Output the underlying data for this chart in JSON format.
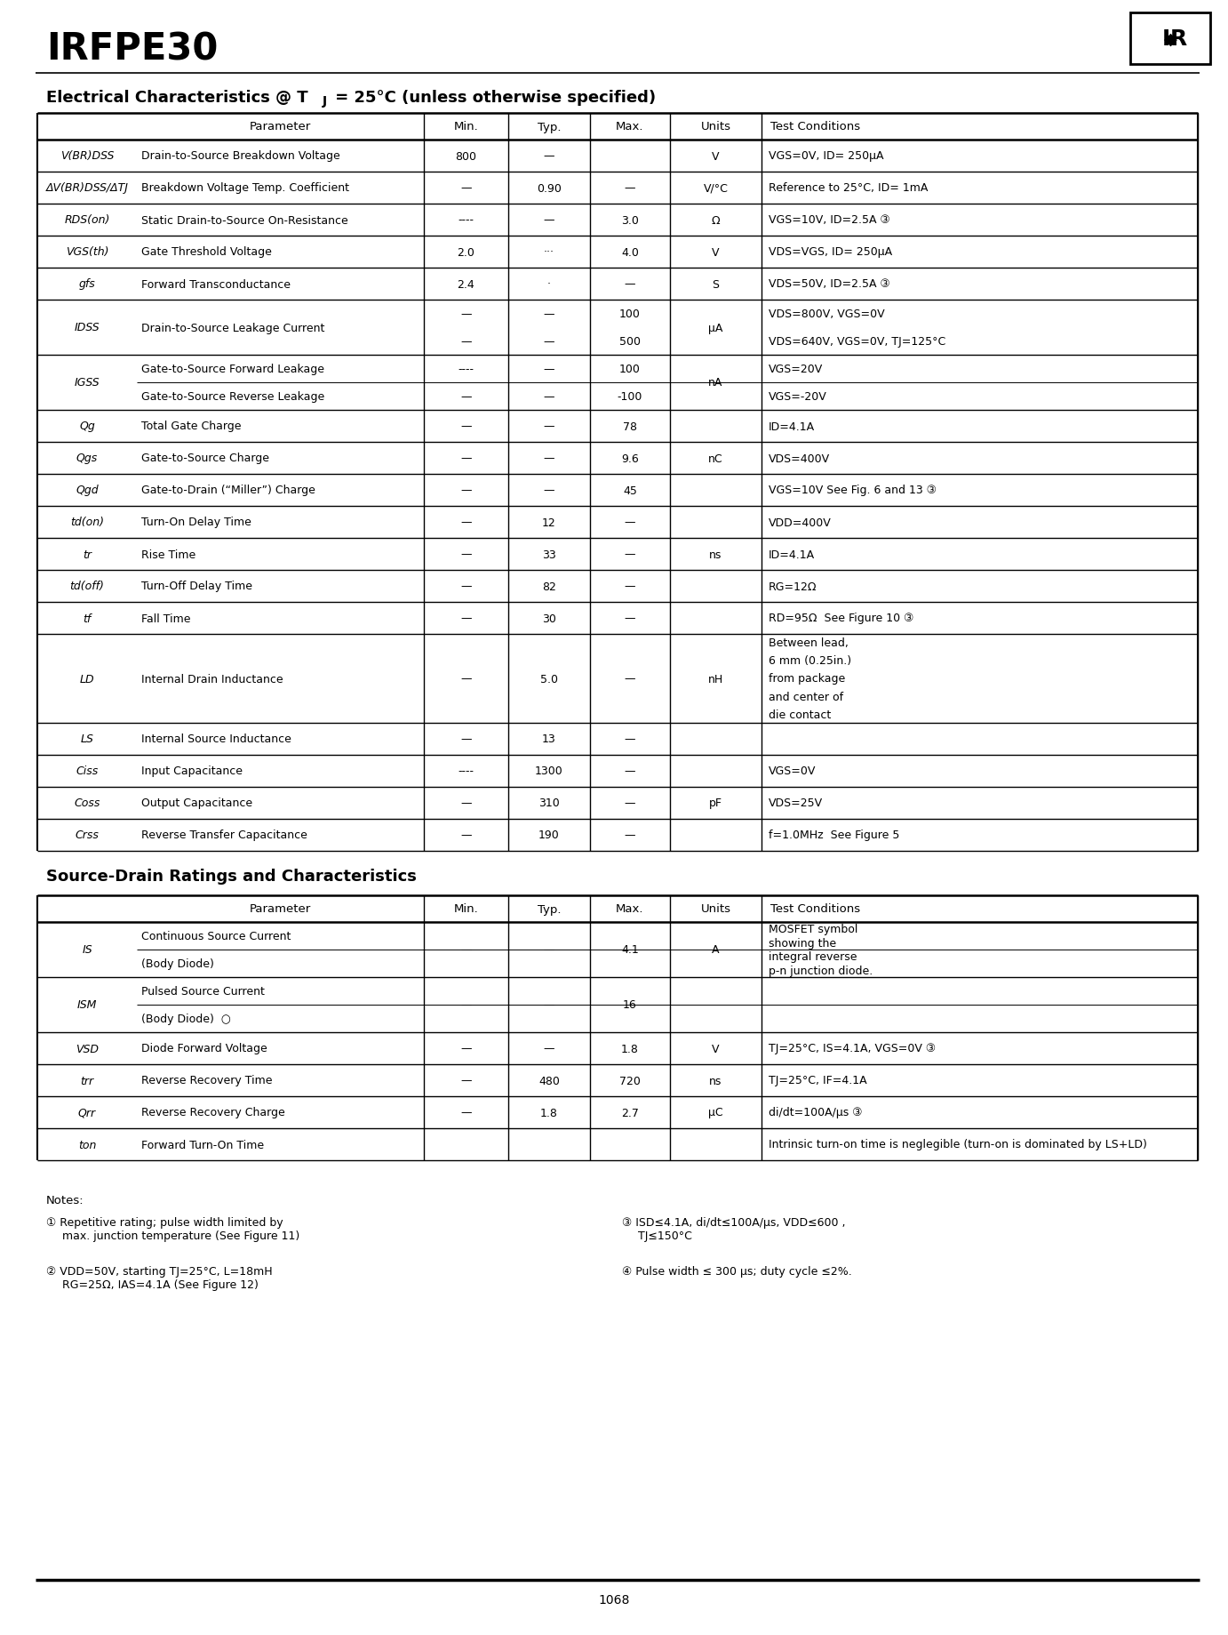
{
  "title": "IRFPE30",
  "page_number": "1068",
  "ec_heading": "Electrical Characteristics @ TJ = 25°C (unless otherwise specified)",
  "sd_heading": "Source-Drain Ratings and Characteristics",
  "ec_headers": [
    "",
    "Parameter",
    "Min.",
    "Typ.",
    "Max.",
    "Units",
    "Test Conditions"
  ],
  "ec_rows": [
    {
      "sym": "V(BR)DSS",
      "param": "Drain-to-Source Breakdown Voltage",
      "min": "800",
      "typ": "—",
      "max": "",
      "units": "V",
      "cond": "VGS=0V, ID= 250μA",
      "rh": 36
    },
    {
      "sym": "ΔV(BR)DSS/ΔTJ",
      "param": "Breakdown Voltage Temp. Coefficient",
      "min": "—",
      "typ": "0.90",
      "max": "—",
      "units": "V/°C",
      "cond": "Reference to 25°C, ID= 1mA",
      "rh": 36
    },
    {
      "sym": "RDS(on)",
      "param": "Static Drain-to-Source On-Resistance",
      "min": "----",
      "typ": "—",
      "max": "3.0",
      "units": "Ω",
      "cond": "VGS=10V, ID=2.5A ③",
      "rh": 36
    },
    {
      "sym": "VGS(th)",
      "param": "Gate Threshold Voltage",
      "min": "2.0",
      "typ": "···",
      "max": "4.0",
      "units": "V",
      "cond": "VDS=VGS, ID= 250μA",
      "rh": 36
    },
    {
      "sym": "gfs",
      "param": "Forward Transconductance",
      "min": "2.4",
      "typ": "·",
      "max": "—",
      "units": "S",
      "cond": "VDS=50V, ID=2.5A ③",
      "rh": 36
    },
    {
      "sym": "IDSS",
      "param": "Drain-to-Source Leakage Current",
      "min": "—\n—",
      "typ": "—\n—",
      "max": "100\n500",
      "units": "μA",
      "cond": "VDS=800V, VGS=0V\nVDS=640V, VGS=0V, TJ=125°C",
      "rh": 62
    },
    {
      "sym": "IGSS",
      "param": "Gate-to-Source Forward Leakage\nGate-to-Source Reverse Leakage",
      "min": "----\n—",
      "typ": "—\n—",
      "max": "100\n-100",
      "units": "nA",
      "cond": "VGS=20V\nVGS=-20V",
      "rh": 62
    },
    {
      "sym": "Qg",
      "param": "Total Gate Charge",
      "min": "—",
      "typ": "—",
      "max": "78",
      "units": "",
      "cond": "ID=4.1A",
      "rh": 36
    },
    {
      "sym": "Qgs",
      "param": "Gate-to-Source Charge",
      "min": "—",
      "typ": "—",
      "max": "9.6",
      "units": "nC",
      "cond": "VDS=400V",
      "rh": 36
    },
    {
      "sym": "Qgd",
      "param": "Gate-to-Drain (“Miller”) Charge",
      "min": "—",
      "typ": "—",
      "max": "45",
      "units": "",
      "cond": "VGS=10V See Fig. 6 and 13 ③",
      "rh": 36
    },
    {
      "sym": "td(on)",
      "param": "Turn-On Delay Time",
      "min": "—",
      "typ": "12",
      "max": "—",
      "units": "",
      "cond": "VDD=400V",
      "rh": 36
    },
    {
      "sym": "tr",
      "param": "Rise Time",
      "min": "—",
      "typ": "33",
      "max": "—",
      "units": "ns",
      "cond": "ID=4.1A",
      "rh": 36
    },
    {
      "sym": "td(off)",
      "param": "Turn-Off Delay Time",
      "min": "—",
      "typ": "82",
      "max": "—",
      "units": "",
      "cond": "RG=12Ω",
      "rh": 36
    },
    {
      "sym": "tf",
      "param": "Fall Time",
      "min": "—",
      "typ": "30",
      "max": "—",
      "units": "",
      "cond": "RD=95Ω  See Figure 10 ③",
      "rh": 36
    },
    {
      "sym": "LD",
      "param": "Internal Drain Inductance",
      "min": "—",
      "typ": "5.0",
      "max": "—",
      "units": "nH",
      "cond": "Between lead,\n6 mm (0.25in.)\nfrom package\nand center of\ndie contact",
      "rh": 100
    },
    {
      "sym": "LS",
      "param": "Internal Source Inductance",
      "min": "—",
      "typ": "13",
      "max": "—",
      "units": "",
      "cond": "",
      "rh": 36
    },
    {
      "sym": "Ciss",
      "param": "Input Capacitance",
      "min": "----",
      "typ": "1300",
      "max": "—",
      "units": "",
      "cond": "VGS=0V",
      "rh": 36
    },
    {
      "sym": "Coss",
      "param": "Output Capacitance",
      "min": "—",
      "typ": "310",
      "max": "—",
      "units": "pF",
      "cond": "VDS=25V",
      "rh": 36
    },
    {
      "sym": "Crss",
      "param": "Reverse Transfer Capacitance",
      "min": "—",
      "typ": "190",
      "max": "—",
      "units": "",
      "cond": "f=1.0MHz  See Figure 5",
      "rh": 36
    }
  ],
  "sd_headers": [
    "",
    "Parameter",
    "Min.",
    "Typ.",
    "Max.",
    "Units",
    "Test Conditions"
  ],
  "sd_rows": [
    {
      "sym": "IS",
      "param": "Continuous Source Current\n(Body Diode)",
      "min": "—",
      "typ": "—",
      "max": "4.1",
      "units": "A",
      "cond": "MOSFET symbol\nshowing the\nintegral reverse\np-n junction diode.",
      "rh": 62
    },
    {
      "sym": "ISM",
      "param": "Pulsed Source Current\n(Body Diode)  ○",
      "min": "—",
      "typ": "—",
      "max": "16",
      "units": "",
      "cond": "",
      "rh": 62
    },
    {
      "sym": "VSD",
      "param": "Diode Forward Voltage",
      "min": "—",
      "typ": "—",
      "max": "1.8",
      "units": "V",
      "cond": "TJ=25°C, IS=4.1A, VGS=0V ③",
      "rh": 36
    },
    {
      "sym": "trr",
      "param": "Reverse Recovery Time",
      "min": "—",
      "typ": "480",
      "max": "720",
      "units": "ns",
      "cond": "TJ=25°C, IF=4.1A",
      "rh": 36
    },
    {
      "sym": "Qrr",
      "param": "Reverse Recovery Charge",
      "min": "—",
      "typ": "1.8",
      "max": "2.7",
      "units": "μC",
      "cond": "di/dt=100A/μs ③",
      "rh": 36
    },
    {
      "sym": "ton",
      "param": "Forward Turn-On Time",
      "min": "",
      "typ": "",
      "max": "",
      "units": "",
      "cond": "Intrinsic turn-on time is neglegible (turn-on is dominated by LS+LD)",
      "rh": 36
    }
  ],
  "notes": [
    [
      "① Repetitive rating; pulse width limited by",
      "max. junction temperature (See Figure 11)"
    ],
    [
      "② VDD=50V, starting TJ=25°C, L=18mH",
      "RG=25Ω, IAS=4.1A (See Figure 12)"
    ]
  ],
  "notes_right": [
    [
      "③ ISD≤4.1A, di/dt≤100A/μs, VDD≤600 ,",
      "TJ≤150°C"
    ],
    [
      "④ Pulse width ≤ 300 μs; duty cycle ≤2%."
    ]
  ]
}
